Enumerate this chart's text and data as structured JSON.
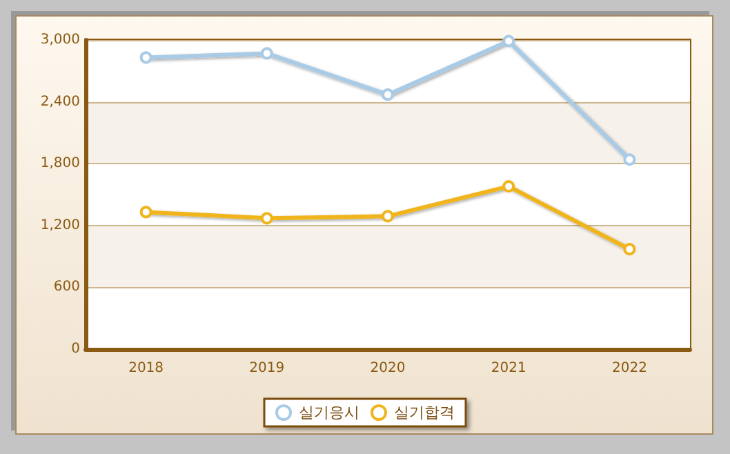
{
  "chart_data": {
    "type": "line",
    "categories": [
      "2018",
      "2019",
      "2020",
      "2021",
      "2022"
    ],
    "series": [
      {
        "name": "실기응시",
        "color": "#a9cbe6",
        "values": [
          2830,
          2870,
          2470,
          2990,
          1840
        ]
      },
      {
        "name": "실기합격",
        "color": "#f0b51e",
        "values": [
          1330,
          1270,
          1290,
          1580,
          970
        ]
      }
    ],
    "ylim": [
      0,
      3000
    ],
    "yticks": [
      0,
      600,
      {
        "value": 1200,
        "label": "1,200"
      },
      {
        "value": 1800,
        "label": "1,800"
      },
      {
        "value": 2400,
        "label": "2,400"
      },
      {
        "value": 3000,
        "label": "3,000"
      }
    ],
    "grid": "y",
    "legend": "bottom",
    "marker": "circle",
    "line_style": "solid"
  }
}
